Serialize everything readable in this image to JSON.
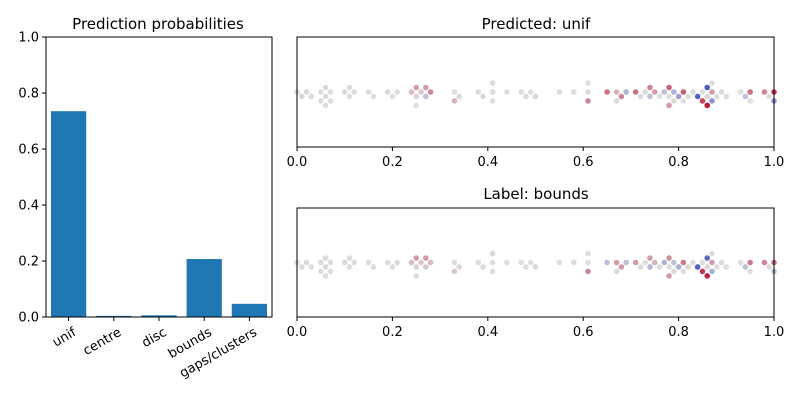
{
  "chart_data": [
    {
      "type": "bar",
      "title": "Prediction probabilities",
      "categories": [
        "unif",
        "centre",
        "disc",
        "bounds",
        "gaps/clusters"
      ],
      "values": [
        0.735,
        0.004,
        0.006,
        0.207,
        0.047
      ],
      "ylim": [
        0,
        1
      ],
      "yticks": [
        "0.0",
        "0.2",
        "0.4",
        "0.6",
        "0.8",
        "1.0"
      ],
      "color": "#1f77b4"
    },
    {
      "type": "scatter",
      "title": "Predicted: unif",
      "xlim": [
        0,
        1
      ],
      "xticks": [
        "0.0",
        "0.2",
        "0.4",
        "0.6",
        "0.8",
        "1.0"
      ],
      "colormap": "coolwarm",
      "x": [
        0.0,
        0.01,
        0.02,
        0.03,
        0.05,
        0.05,
        0.06,
        0.06,
        0.06,
        0.07,
        0.07,
        0.1,
        0.11,
        0.11,
        0.12,
        0.15,
        0.16,
        0.19,
        0.2,
        0.21,
        0.24,
        0.25,
        0.25,
        0.25,
        0.26,
        0.27,
        0.27,
        0.28,
        0.33,
        0.33,
        0.34,
        0.38,
        0.39,
        0.41,
        0.41,
        0.41,
        0.44,
        0.47,
        0.48,
        0.49,
        0.5,
        0.55,
        0.58,
        0.61,
        0.61,
        0.61,
        0.65,
        0.67,
        0.67,
        0.68,
        0.69,
        0.71,
        0.72,
        0.73,
        0.74,
        0.74,
        0.75,
        0.76,
        0.77,
        0.78,
        0.78,
        0.78,
        0.79,
        0.79,
        0.8,
        0.81,
        0.81,
        0.82,
        0.83,
        0.84,
        0.85,
        0.85,
        0.86,
        0.86,
        0.86,
        0.87,
        0.87,
        0.87,
        0.88,
        0.89,
        0.9,
        0.93,
        0.94,
        0.95,
        0.95,
        0.98,
        0.99,
        1.0,
        1.0
      ],
      "values": [
        -0.02,
        -0.02,
        -0.03,
        0.0,
        0.0,
        0.0,
        -0.02,
        0.02,
        0.0,
        0.0,
        0.0,
        -0.02,
        0.0,
        -0.01,
        -0.01,
        0.0,
        0.0,
        -0.02,
        0.0,
        0.02,
        0.15,
        0.05,
        0.3,
        0.0,
        0.1,
        -0.2,
        0.3,
        0.4,
        0.0,
        0.2,
        0.02,
        0.01,
        -0.03,
        0.0,
        0.0,
        0.02,
        0.0,
        0.0,
        -0.01,
        0.0,
        0.03,
        0.0,
        0.0,
        0.0,
        0.4,
        0.0,
        0.5,
        0.2,
        0.02,
        0.4,
        -0.3,
        0.5,
        0.0,
        0.0,
        -0.2,
        0.4,
        0.3,
        0.0,
        -0.2,
        0.0,
        0.55,
        0.3,
        -0.3,
        0.02,
        -0.4,
        0.6,
        0.0,
        0.02,
        0.0,
        -0.85,
        0.0,
        0.7,
        0.03,
        -0.9,
        0.9,
        0.3,
        -0.5,
        0.0,
        0.0,
        0.02,
        0.0,
        0.0,
        -0.2,
        0.5,
        0.0,
        0.4,
        0.0,
        0.75,
        -0.5
      ]
    },
    {
      "type": "scatter",
      "title": "Label: bounds",
      "xlim": [
        0,
        1
      ],
      "xticks": [
        "0.0",
        "0.2",
        "0.4",
        "0.6",
        "0.8",
        "1.0"
      ],
      "colormap": "coolwarm",
      "x": [
        0.0,
        0.01,
        0.02,
        0.03,
        0.05,
        0.05,
        0.06,
        0.06,
        0.06,
        0.07,
        0.07,
        0.1,
        0.11,
        0.11,
        0.12,
        0.15,
        0.16,
        0.19,
        0.2,
        0.21,
        0.24,
        0.25,
        0.25,
        0.25,
        0.26,
        0.27,
        0.27,
        0.28,
        0.33,
        0.33,
        0.34,
        0.38,
        0.39,
        0.41,
        0.41,
        0.41,
        0.44,
        0.47,
        0.48,
        0.49,
        0.5,
        0.55,
        0.58,
        0.61,
        0.61,
        0.61,
        0.65,
        0.67,
        0.67,
        0.68,
        0.69,
        0.71,
        0.72,
        0.73,
        0.74,
        0.74,
        0.75,
        0.76,
        0.77,
        0.78,
        0.78,
        0.78,
        0.79,
        0.79,
        0.8,
        0.81,
        0.81,
        0.82,
        0.83,
        0.84,
        0.85,
        0.85,
        0.86,
        0.86,
        0.86,
        0.87,
        0.87,
        0.87,
        0.88,
        0.89,
        0.9,
        0.93,
        0.94,
        0.95,
        0.95,
        0.98,
        0.99,
        1.0,
        1.0
      ],
      "values": [
        -0.02,
        -0.02,
        -0.03,
        0.0,
        0.0,
        0.0,
        -0.02,
        0.02,
        0.0,
        0.0,
        0.0,
        -0.02,
        0.0,
        -0.01,
        -0.01,
        0.0,
        0.0,
        -0.02,
        0.0,
        0.02,
        0.15,
        0.05,
        0.3,
        0.0,
        0.1,
        0.1,
        0.3,
        0.15,
        0.0,
        0.1,
        0.02,
        0.01,
        -0.03,
        0.0,
        0.0,
        0.02,
        0.0,
        0.0,
        -0.01,
        0.0,
        0.03,
        0.0,
        0.0,
        0.0,
        0.4,
        0.0,
        -0.2,
        0.3,
        0.02,
        0.3,
        -0.2,
        0.3,
        0.0,
        0.0,
        -0.25,
        0.3,
        0.2,
        0.0,
        -0.3,
        0.0,
        0.35,
        0.3,
        -0.2,
        0.02,
        -0.3,
        0.45,
        0.0,
        0.02,
        0.0,
        -0.85,
        0.0,
        0.75,
        0.03,
        -0.8,
        0.85,
        0.3,
        -0.3,
        0.0,
        0.0,
        0.02,
        0.0,
        0.0,
        -0.2,
        0.45,
        0.0,
        0.4,
        0.0,
        0.5,
        -0.2
      ]
    }
  ]
}
